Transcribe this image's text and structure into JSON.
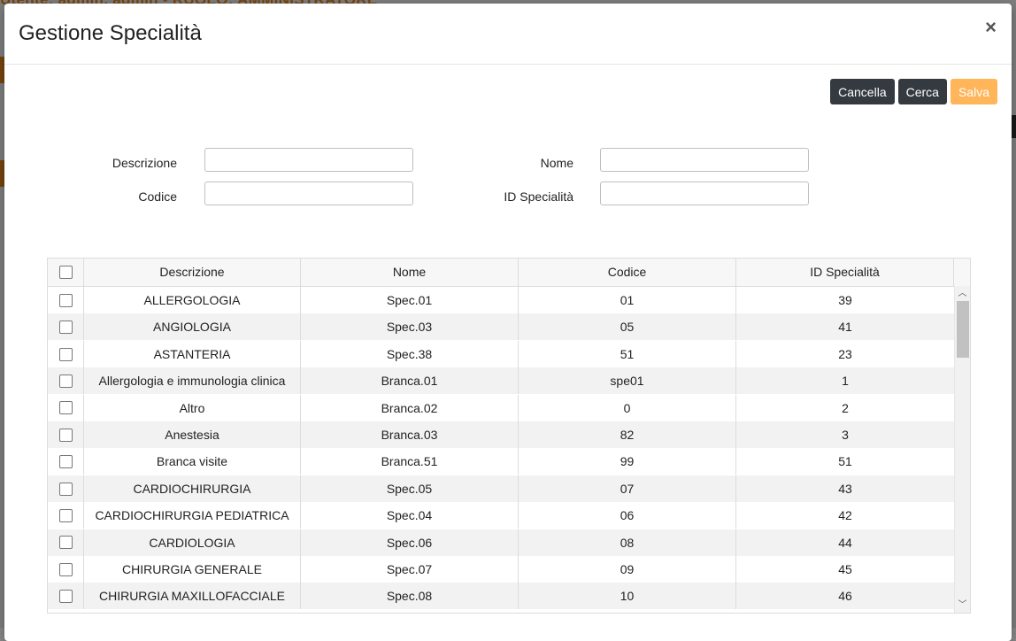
{
  "background": {
    "title": "Utente: admin, admin - RUOLO: AMMINISTRATORE"
  },
  "modal": {
    "title": "Gestione Specialità",
    "close_label": "×"
  },
  "toolbar": {
    "cancel_label": "Cancella",
    "search_label": "Cerca",
    "save_label": "Salva"
  },
  "form": {
    "descrizione_label": "Descrizione",
    "nome_label": "Nome",
    "codice_label": "Codice",
    "id_specialita_label": "ID Specialità",
    "descrizione_value": "",
    "nome_value": "",
    "codice_value": "",
    "id_specialita_value": ""
  },
  "table": {
    "headers": [
      "Descrizione",
      "Nome",
      "Codice",
      "ID Specialità"
    ],
    "rows": [
      [
        "ALLERGOLOGIA",
        "Spec.01",
        "01",
        "39"
      ],
      [
        "ANGIOLOGIA",
        "Spec.03",
        "05",
        "41"
      ],
      [
        "ASTANTERIA",
        "Spec.38",
        "51",
        "23"
      ],
      [
        "Allergologia e immunologia clinica",
        "Branca.01",
        "spe01",
        "1"
      ],
      [
        "Altro",
        "Branca.02",
        "0",
        "2"
      ],
      [
        "Anestesia",
        "Branca.03",
        "82",
        "3"
      ],
      [
        "Branca visite",
        "Branca.51",
        "99",
        "51"
      ],
      [
        "CARDIOCHIRURGIA",
        "Spec.05",
        "07",
        "43"
      ],
      [
        "CARDIOCHIRURGIA PEDIATRICA",
        "Spec.04",
        "06",
        "42"
      ],
      [
        "CARDIOLOGIA",
        "Spec.06",
        "08",
        "44"
      ],
      [
        "CHIRURGIA GENERALE",
        "Spec.07",
        "09",
        "45"
      ],
      [
        "CHIRURGIA MAXILLOFACCIALE",
        "Spec.08",
        "10",
        "46"
      ]
    ]
  },
  "colors": {
    "orange_accent": "#f08a1c",
    "dark_button": "#343a40",
    "save_button": "#ffb55a"
  }
}
